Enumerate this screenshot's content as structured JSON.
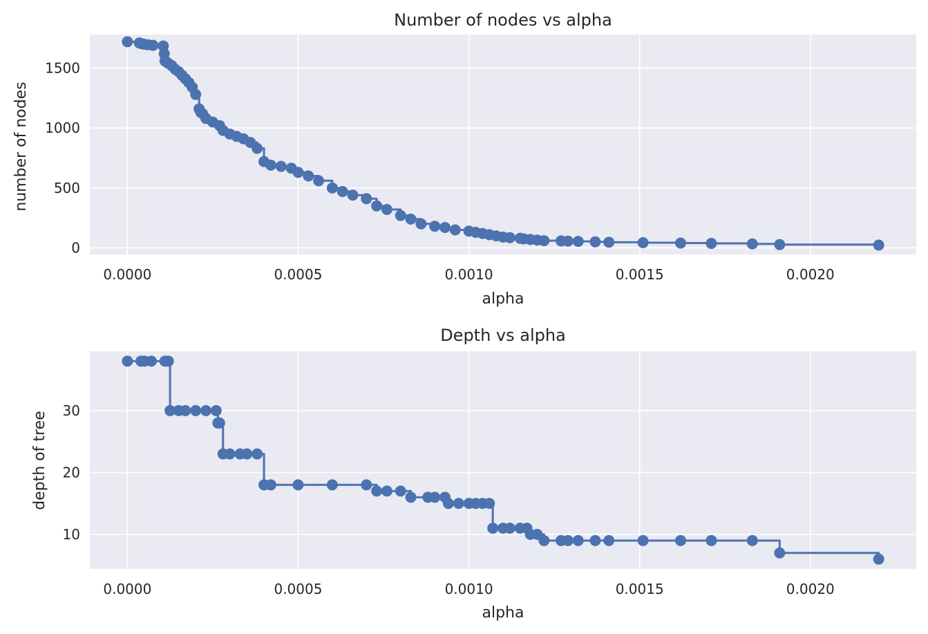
{
  "chart_data": [
    {
      "type": "line",
      "title": "Number of nodes vs alpha",
      "xlabel": "alpha",
      "ylabel": "number of nodes",
      "xlim": [
        -0.00011,
        0.00231
      ],
      "ylim": [
        -55,
        1780
      ],
      "xticks": [
        0,
        0.0005,
        0.001,
        0.0015,
        0.002
      ],
      "xtick_labels": [
        "0.0000",
        "0.0005",
        "0.0010",
        "0.0015",
        "0.0020"
      ],
      "yticks": [
        0,
        500,
        1000,
        1500
      ],
      "ytick_labels": [
        "0",
        "500",
        "1000",
        "1500"
      ],
      "drawstyle": "steps-post",
      "marker": "circle",
      "grid": true,
      "color": "#4c72b0",
      "x": [
        0,
        3.5e-05,
        4e-05,
        4.8e-05,
        6e-05,
        7.5e-05,
        0.000105,
        0.000108,
        0.00011,
        0.000115,
        0.00012,
        0.00013,
        0.00014,
        0.00015,
        0.00016,
        0.00017,
        0.00018,
        0.00019,
        0.0002,
        0.00021,
        0.000215,
        0.00022,
        0.00023,
        0.00025,
        0.00027,
        0.00028,
        0.0003,
        0.00032,
        0.00034,
        0.00036,
        0.00038,
        0.0004,
        0.00042,
        0.00045,
        0.00048,
        0.0005,
        0.00053,
        0.00056,
        0.0006,
        0.00063,
        0.00066,
        0.0007,
        0.00073,
        0.00076,
        0.0008,
        0.00083,
        0.00086,
        0.0009,
        0.00093,
        0.00096,
        0.001,
        0.00102,
        0.00104,
        0.00106,
        0.00108,
        0.0011,
        0.00112,
        0.00115,
        0.00116,
        0.00118,
        0.0012,
        0.00122,
        0.00127,
        0.00129,
        0.00132,
        0.00137,
        0.00141,
        0.00151,
        0.00162,
        0.00171,
        0.00183,
        0.00191,
        0.0022
      ],
      "y": [
        1720,
        1710,
        1705,
        1700,
        1695,
        1690,
        1685,
        1620,
        1560,
        1550,
        1540,
        1520,
        1490,
        1470,
        1440,
        1410,
        1380,
        1340,
        1280,
        1160,
        1130,
        1120,
        1080,
        1050,
        1020,
        980,
        950,
        930,
        910,
        880,
        830,
        720,
        690,
        680,
        665,
        630,
        600,
        560,
        500,
        470,
        440,
        410,
        350,
        320,
        270,
        240,
        200,
        180,
        170,
        150,
        140,
        130,
        120,
        110,
        100,
        90,
        85,
        80,
        75,
        70,
        65,
        60,
        58,
        56,
        54,
        50,
        47,
        43,
        40,
        37,
        33,
        27,
        23
      ]
    },
    {
      "type": "line",
      "title": "Depth vs alpha",
      "xlabel": "alpha",
      "ylabel": "depth of tree",
      "xlim": [
        -0.00011,
        0.00231
      ],
      "ylim": [
        4.4,
        39.6
      ],
      "xticks": [
        0,
        0.0005,
        0.001,
        0.0015,
        0.002
      ],
      "xtick_labels": [
        "0.0000",
        "0.0005",
        "0.0010",
        "0.0015",
        "0.0020"
      ],
      "yticks": [
        10,
        20,
        30
      ],
      "ytick_labels": [
        "10",
        "20",
        "30"
      ],
      "drawstyle": "steps-post",
      "marker": "circle",
      "grid": true,
      "color": "#4c72b0",
      "x": [
        0,
        4e-05,
        5e-05,
        7e-05,
        0.00011,
        0.00012,
        0.000125,
        0.00015,
        0.00017,
        0.0002,
        0.00023,
        0.00026,
        0.000265,
        0.00027,
        0.00028,
        0.0003,
        0.00033,
        0.00035,
        0.00038,
        0.0004,
        0.00042,
        0.0005,
        0.0006,
        0.0007,
        0.00073,
        0.00076,
        0.0008,
        0.00083,
        0.00088,
        0.0009,
        0.00093,
        0.00094,
        0.00097,
        0.001,
        0.00102,
        0.00104,
        0.00106,
        0.00107,
        0.0011,
        0.00112,
        0.00115,
        0.00117,
        0.00118,
        0.0012,
        0.00122,
        0.00127,
        0.00129,
        0.00132,
        0.00137,
        0.00141,
        0.00151,
        0.00162,
        0.00171,
        0.00183,
        0.00191,
        0.0022
      ],
      "y": [
        38,
        38,
        38,
        38,
        38,
        38,
        30,
        30,
        30,
        30,
        30,
        30,
        28,
        28,
        23,
        23,
        23,
        23,
        23,
        18,
        18,
        18,
        18,
        18,
        17,
        17,
        17,
        16,
        16,
        16,
        16,
        15,
        15,
        15,
        15,
        15,
        15,
        11,
        11,
        11,
        11,
        11,
        10,
        10,
        9,
        9,
        9,
        9,
        9,
        9,
        9,
        9,
        9,
        9,
        7,
        6
      ]
    }
  ]
}
